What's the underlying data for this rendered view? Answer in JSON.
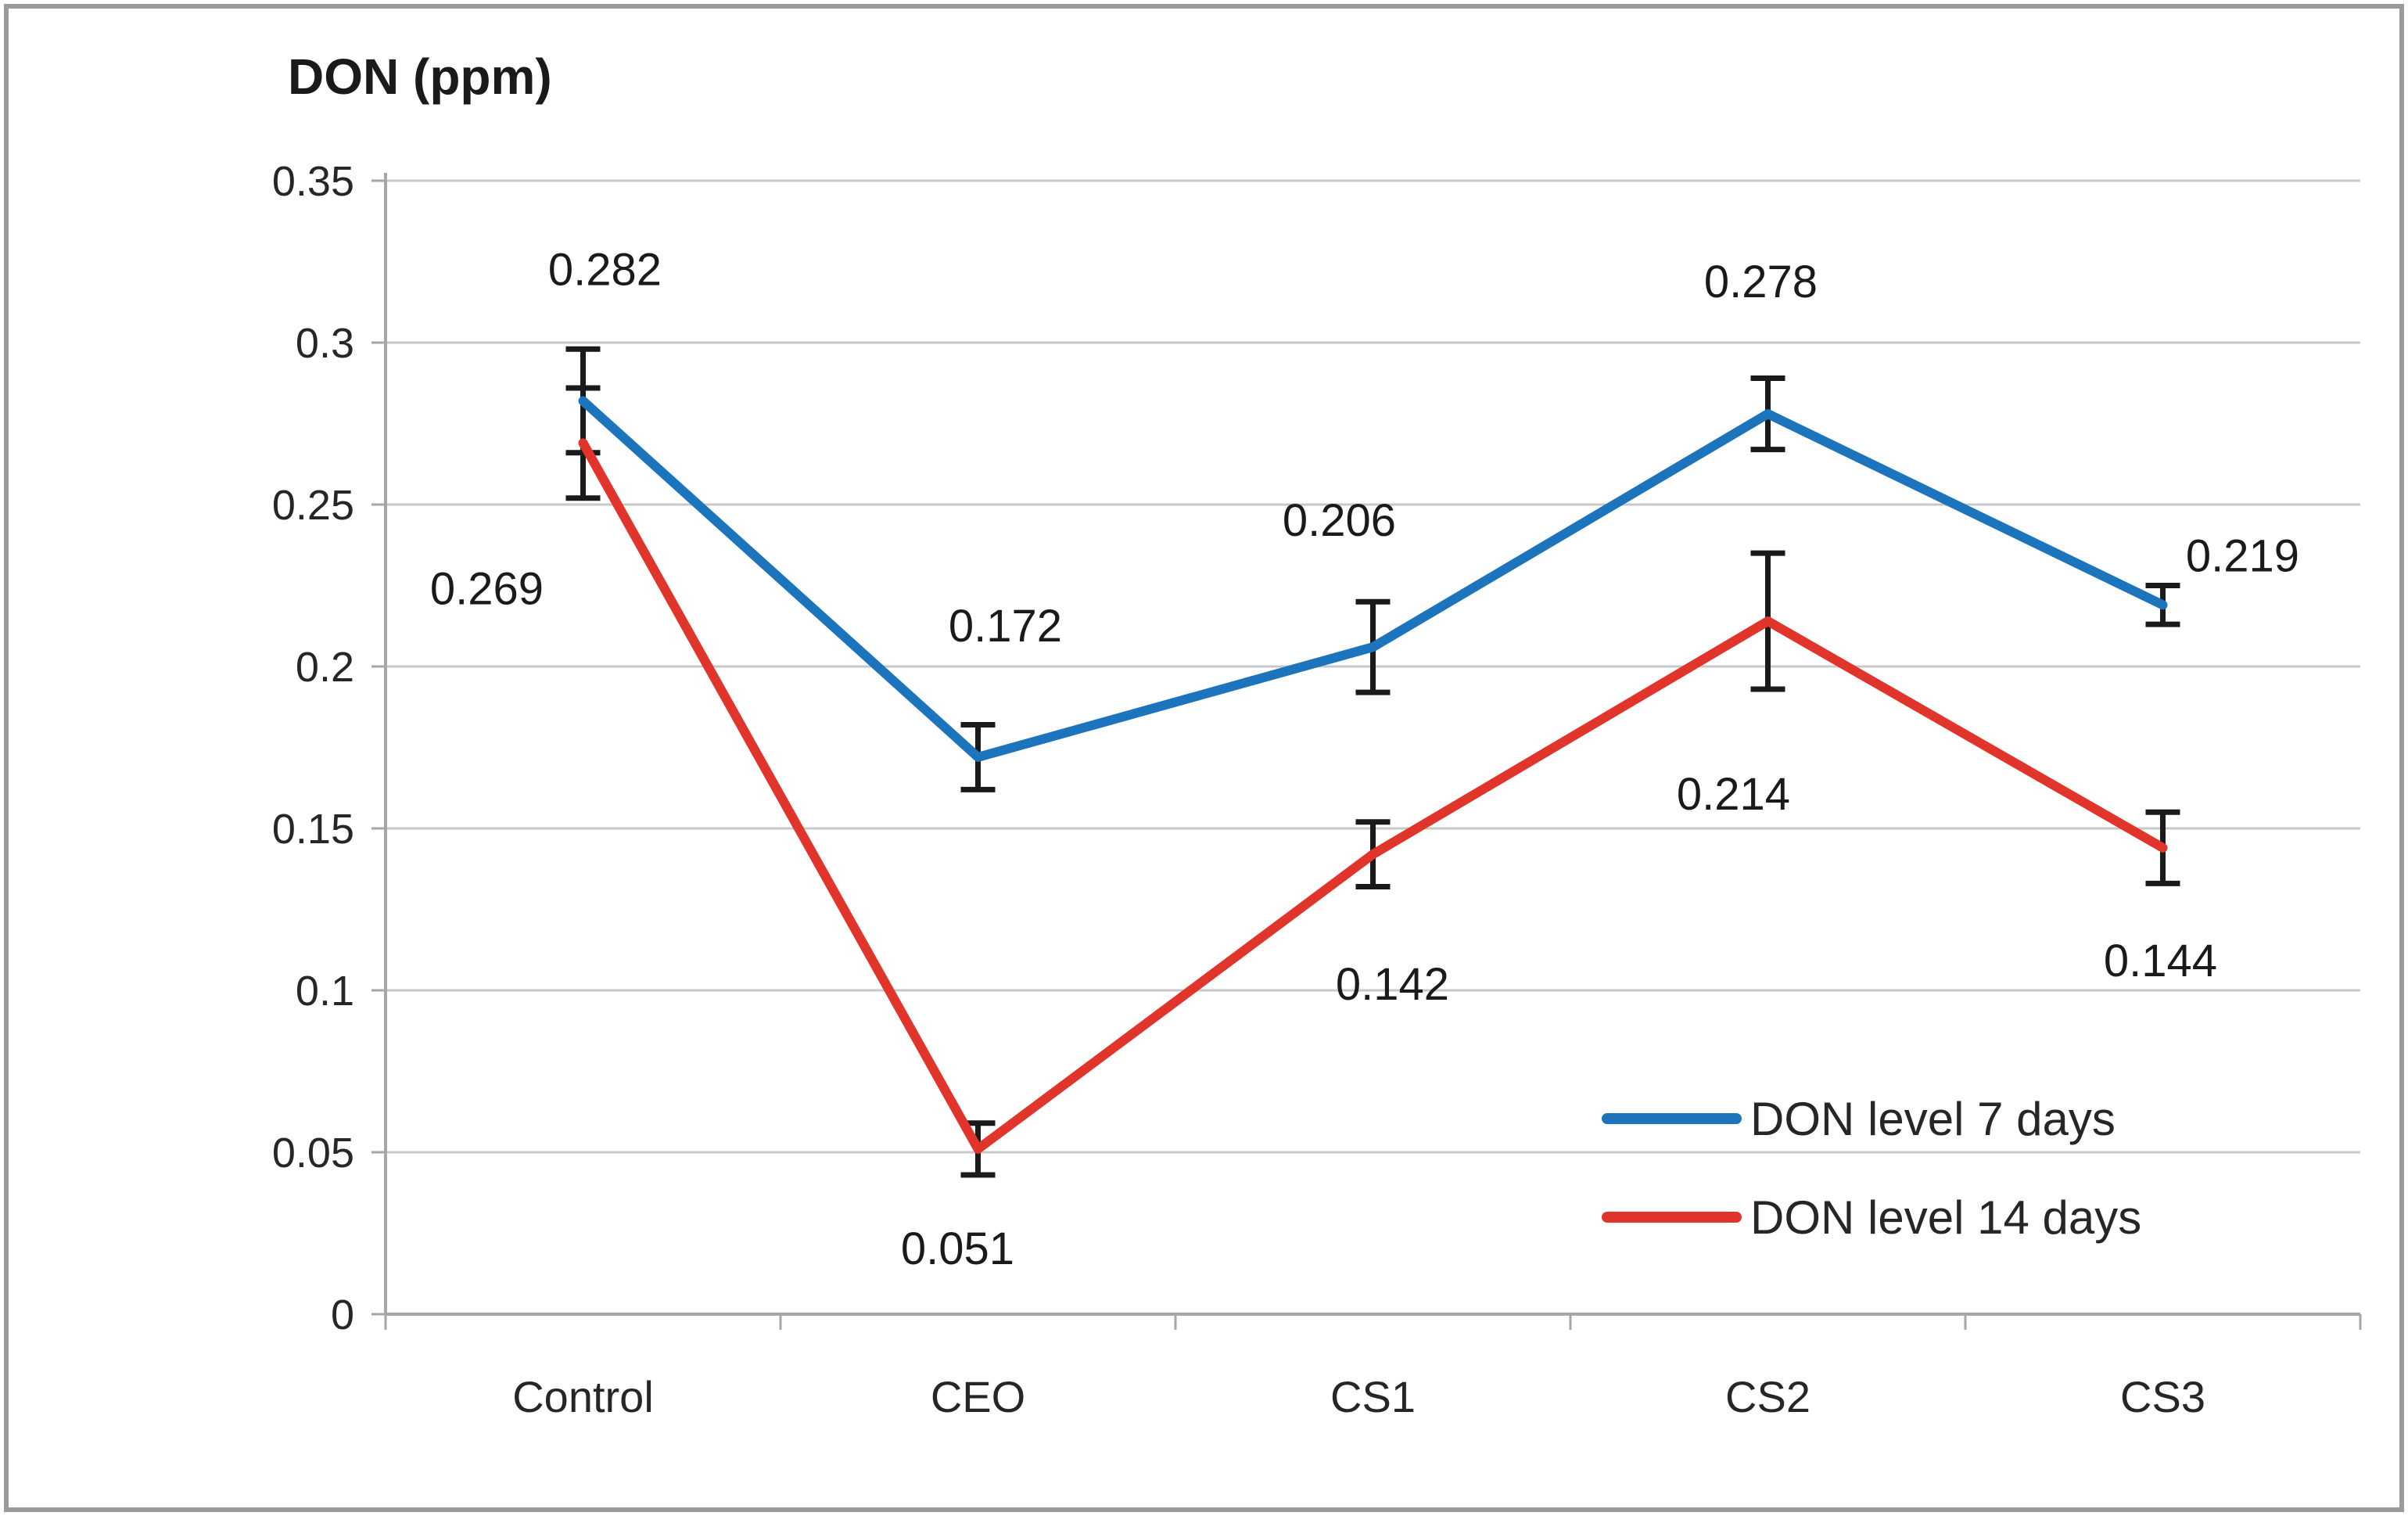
{
  "chart_data": {
    "type": "line",
    "title": "DON (ppm)",
    "categories": [
      "Control",
      "CEO",
      "CS1",
      "CS2",
      "CS3"
    ],
    "series": [
      {
        "name": "DON level 7 days",
        "color": "#1b74bc",
        "values": [
          0.282,
          0.172,
          0.206,
          0.278,
          0.219
        ],
        "errors": [
          0.016,
          0.01,
          0.014,
          0.011,
          0.006
        ],
        "label_offsets": [
          [
            28,
            -168
          ],
          [
            35,
            -168
          ],
          [
            -43,
            -162
          ],
          [
            -9,
            -169
          ],
          [
            102,
            -63
          ]
        ]
      },
      {
        "name": "DON level 14 days",
        "color": "#e1342b",
        "values": [
          0.269,
          0.051,
          0.142,
          0.214,
          0.144
        ],
        "errors": [
          0.017,
          0.008,
          0.01,
          0.021,
          0.011
        ],
        "label_offsets": [
          [
            -123,
            186
          ],
          [
            -26,
            127
          ],
          [
            25,
            166
          ],
          [
            -44,
            221
          ],
          [
            -3,
            144
          ]
        ]
      }
    ],
    "ylim": [
      0,
      0.35
    ],
    "ytick_step": 0.05,
    "ytick_labels": [
      "0",
      "0.05",
      "0.1",
      "0.15",
      "0.2",
      "0.25",
      "0.3",
      "0.35"
    ],
    "grid": true,
    "error_bars": true,
    "markers": false,
    "legend_position": "inside-bottom-right"
  }
}
